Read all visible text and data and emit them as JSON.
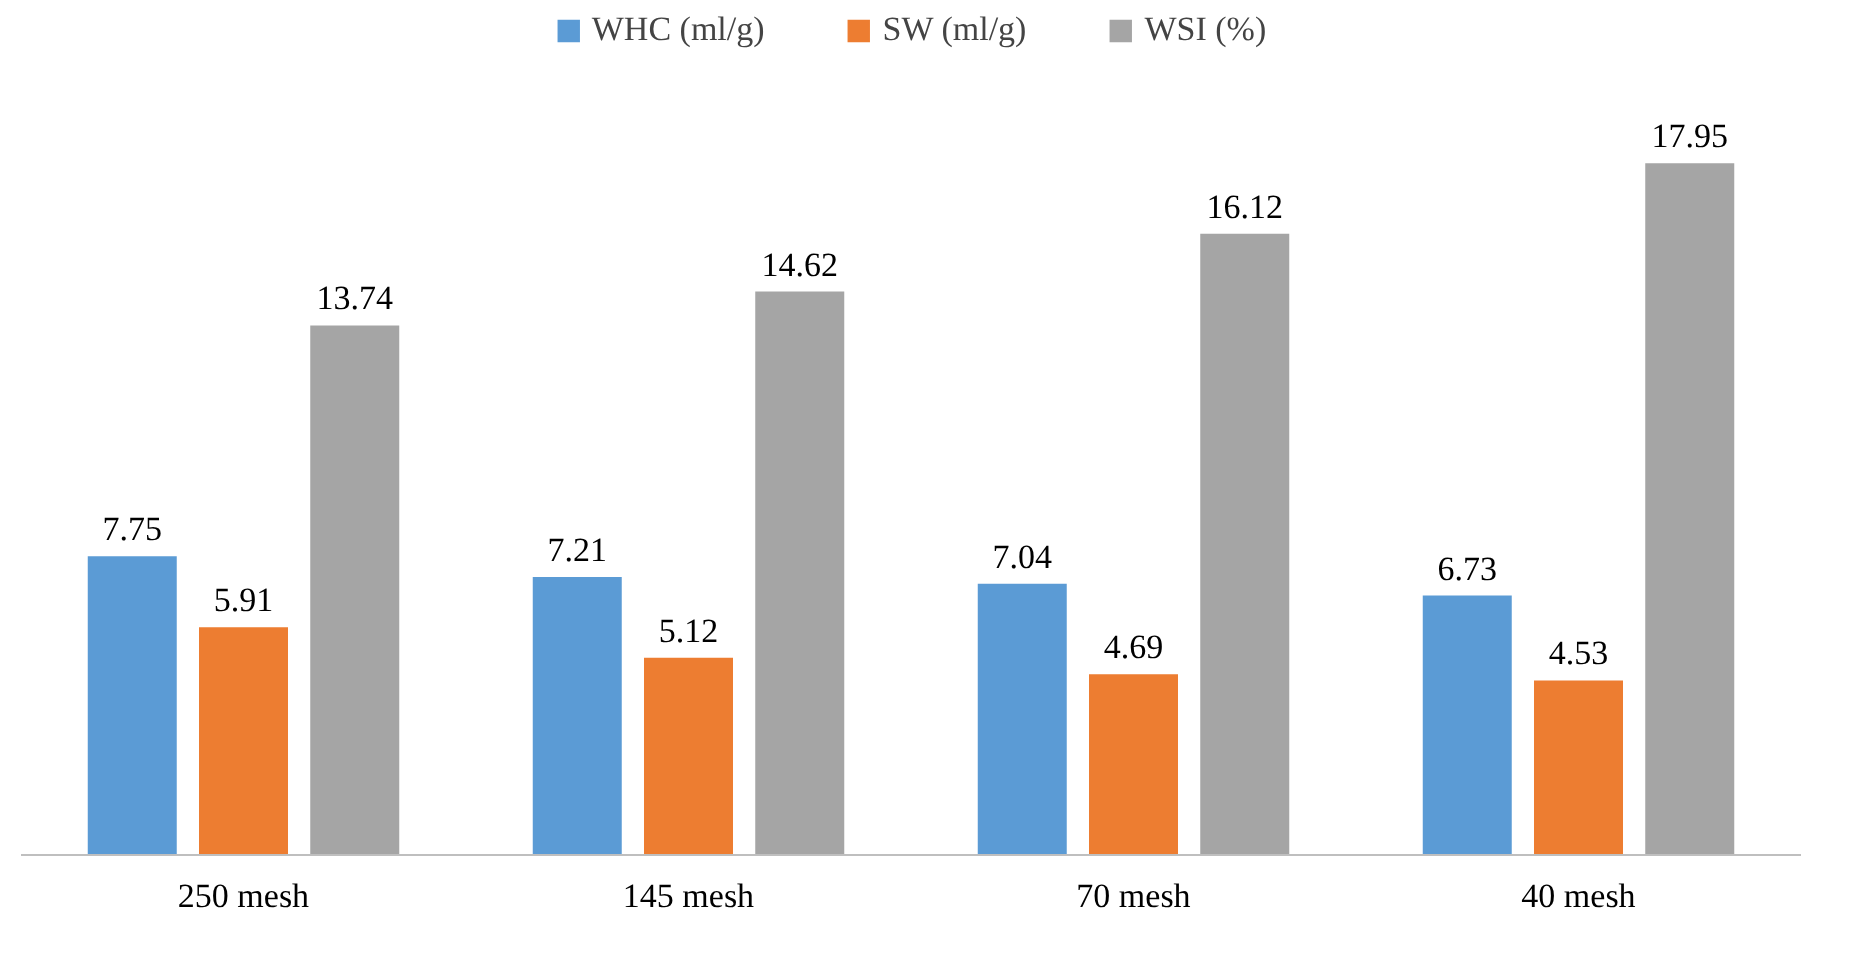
{
  "chart_data": {
    "type": "bar",
    "categories": [
      "250 mesh",
      "145 mesh",
      "70 mesh",
      "40 mesh"
    ],
    "series": [
      {
        "name": "WHC (ml/g)",
        "color": "#5b9bd5",
        "values": [
          7.75,
          7.21,
          7.04,
          6.73
        ]
      },
      {
        "name": "SW (ml/g)",
        "color": "#ed7d31",
        "values": [
          5.91,
          5.12,
          4.69,
          4.53
        ]
      },
      {
        "name": "WSI (%)",
        "color": "#a5a5a5",
        "values": [
          13.74,
          14.62,
          16.12,
          17.95
        ]
      }
    ],
    "data_labels": true,
    "legend": "top",
    "grid": false
  }
}
